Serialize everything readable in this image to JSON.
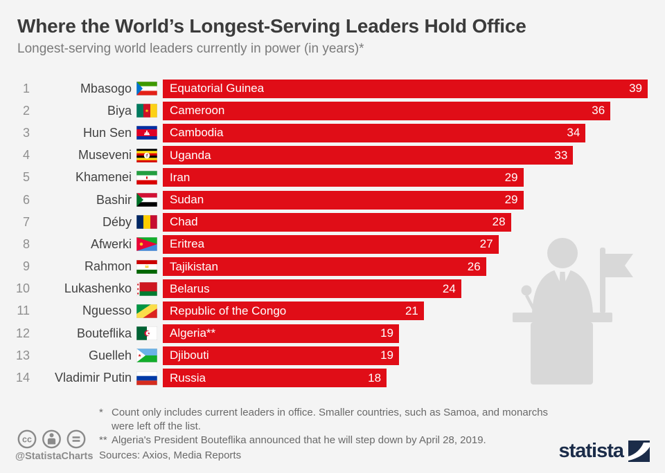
{
  "title": "Where the World’s Longest-Serving Leaders Hold Office",
  "subtitle": "Longest-serving world leaders currently in power (in years)*",
  "chart_data": {
    "type": "bar",
    "orientation": "horizontal",
    "title": "Where the World’s Longest-Serving Leaders Hold Office",
    "unit": "years",
    "xlim": [
      0,
      39
    ],
    "grid": false,
    "legend": false,
    "categories": [
      "Equatorial Guinea",
      "Cameroon",
      "Cambodia",
      "Uganda",
      "Iran",
      "Sudan",
      "Chad",
      "Eritrea",
      "Tajikistan",
      "Belarus",
      "Republic of the Congo",
      "Algeria**",
      "Djibouti",
      "Russia"
    ],
    "values": [
      39,
      36,
      34,
      33,
      29,
      29,
      28,
      27,
      26,
      24,
      21,
      19,
      19,
      18
    ],
    "rows": [
      {
        "rank": "1",
        "leader": "Mbasogo",
        "country": "Equatorial Guinea",
        "flag": "equatorial-guinea",
        "value": 39
      },
      {
        "rank": "2",
        "leader": "Biya",
        "country": "Cameroon",
        "flag": "cameroon",
        "value": 36
      },
      {
        "rank": "3",
        "leader": "Hun Sen",
        "country": "Cambodia",
        "flag": "cambodia",
        "value": 34
      },
      {
        "rank": "4",
        "leader": "Museveni",
        "country": "Uganda",
        "flag": "uganda",
        "value": 33
      },
      {
        "rank": "5",
        "leader": "Khamenei",
        "country": "Iran",
        "flag": "iran",
        "value": 29
      },
      {
        "rank": "6",
        "leader": "Bashir",
        "country": "Sudan",
        "flag": "sudan",
        "value": 29
      },
      {
        "rank": "7",
        "leader": "Déby",
        "country": "Chad",
        "flag": "chad",
        "value": 28
      },
      {
        "rank": "8",
        "leader": "Afwerki",
        "country": "Eritrea",
        "flag": "eritrea",
        "value": 27
      },
      {
        "rank": "9",
        "leader": "Rahmon",
        "country": "Tajikistan",
        "flag": "tajikistan",
        "value": 26
      },
      {
        "rank": "10",
        "leader": "Lukashenko",
        "country": "Belarus",
        "flag": "belarus",
        "value": 24
      },
      {
        "rank": "11",
        "leader": "Nguesso",
        "country": "Republic of the Congo",
        "flag": "republic-of-the-congo",
        "value": 21
      },
      {
        "rank": "12",
        "leader": "Bouteflika",
        "country": "Algeria**",
        "flag": "algeria",
        "value": 19
      },
      {
        "rank": "13",
        "leader": "Guelleh",
        "country": "Djibouti",
        "flag": "djibouti",
        "value": 19
      },
      {
        "rank": "14",
        "leader": "Vladimir Putin",
        "country": "Russia",
        "flag": "russia",
        "value": 18
      }
    ]
  },
  "footnotes": {
    "marker1": "*",
    "text1": "Count only includes current leaders in office. Smaller countries, such as Samoa, and monarchs were left off the list.",
    "marker2": "**",
    "text2": "Algeria's President Bouteflika announced that he will step down by April 28, 2019."
  },
  "sources": "Sources: Axios, Media Reports",
  "credits": {
    "handle": "@StatistaCharts",
    "license_icons": [
      "cc-icon",
      "attribution-person-icon",
      "equal-icon"
    ]
  },
  "brand": {
    "name": "statista",
    "color": "#1b2c49"
  },
  "decoration": {
    "icon": "speaker-at-podium-silhouette"
  },
  "colors": {
    "background": "#f4f4f4",
    "bar": "#e00d17",
    "bar_text": "#ffffff",
    "title": "#3b3b3b",
    "subtitle": "#7a7a7a",
    "silhouette": "#d8d8d8"
  }
}
